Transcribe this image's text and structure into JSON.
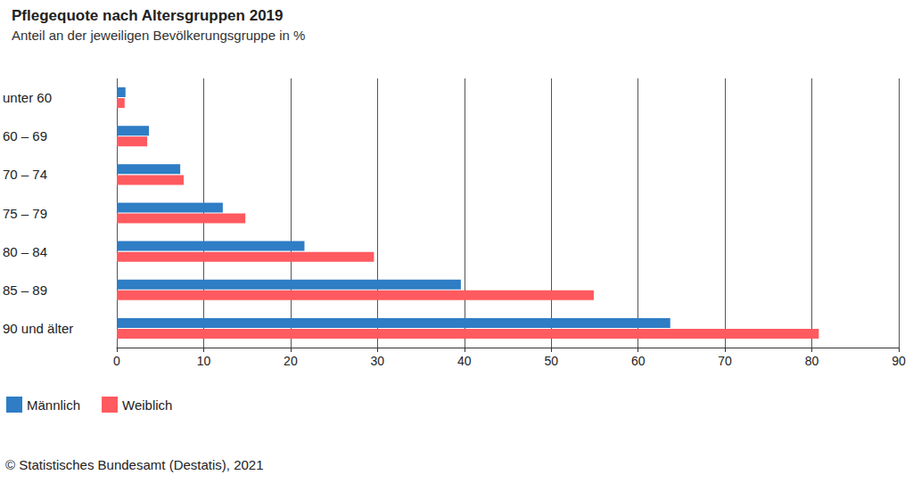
{
  "chart_data": {
    "type": "bar",
    "orientation": "horizontal",
    "title": "Pflegequote nach Altersgruppen 2019",
    "subtitle": "Anteil an der jeweiligen Bevölkerungsgruppe in %",
    "source": "© Statistisches Bundesamt (Destatis), 2021",
    "categories": [
      "unter 60",
      "60 – 69",
      "70 – 74",
      "75 – 79",
      "80 – 84",
      "85 – 89",
      "90 und älter"
    ],
    "series": [
      {
        "name": "Männlich",
        "color": "#2e7dc5",
        "values": [
          1.0,
          3.7,
          7.3,
          12.2,
          21.6,
          39.6,
          63.7
        ]
      },
      {
        "name": "Weiblich",
        "color": "#ff5a5f",
        "values": [
          0.9,
          3.5,
          7.7,
          14.8,
          29.6,
          54.9,
          80.8
        ]
      }
    ],
    "xlim": [
      0,
      90
    ],
    "xticks": [
      0,
      10,
      20,
      30,
      40,
      50,
      60,
      70,
      80,
      90
    ],
    "grid": true,
    "legend": "bottom-left"
  }
}
